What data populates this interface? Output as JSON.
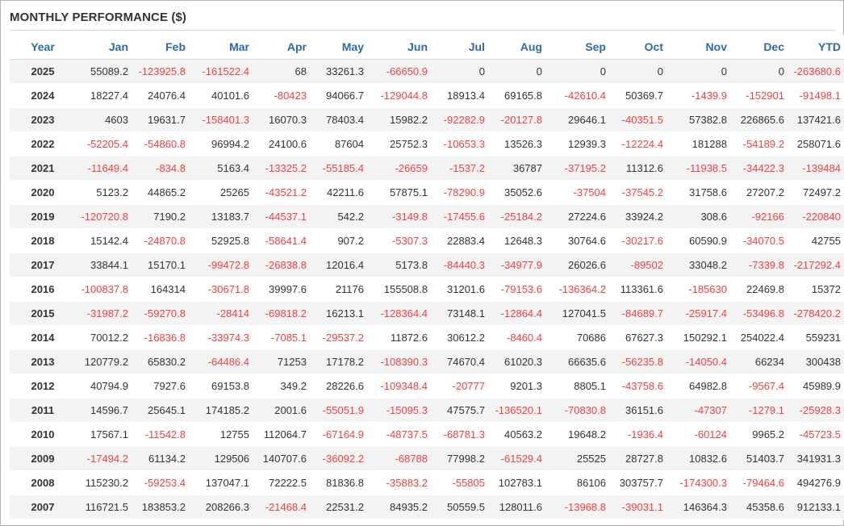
{
  "title": "MONTHLY PERFORMANCE ($)",
  "colors": {
    "header": "#2e6aa6",
    "negative": "#f04040",
    "positive": "#333333",
    "stripe": "#f3f3f3"
  },
  "columns": [
    "Year",
    "Jan",
    "Feb",
    "Mar",
    "Apr",
    "May",
    "Jun",
    "Jul",
    "Aug",
    "Sep",
    "Oct",
    "Nov",
    "Dec",
    "YTD"
  ],
  "rows": [
    [
      "2025",
      "55089.2",
      "-123925.8",
      "-161522.4",
      "68",
      "33261.3",
      "-66650.9",
      "0",
      "0",
      "0",
      "0",
      "0",
      "0",
      "-263680.6"
    ],
    [
      "2024",
      "18227.4",
      "24076.4",
      "40101.6",
      "-80423",
      "94066.7",
      "-129044.8",
      "18913.4",
      "69165.8",
      "-42610.4",
      "50369.7",
      "-1439.9",
      "-152901",
      "-91498.1"
    ],
    [
      "2023",
      "4603",
      "19631.7",
      "-158401.3",
      "16070.3",
      "78403.4",
      "15982.2",
      "-92282.9",
      "-20127.8",
      "29646.1",
      "-40351.5",
      "57382.8",
      "226865.6",
      "137421.6"
    ],
    [
      "2022",
      "-52205.4",
      "-54860.8",
      "96994.2",
      "24100.6",
      "87604",
      "25752.3",
      "-10653.3",
      "13526.3",
      "12939.3",
      "-12224.4",
      "181288",
      "-54189.2",
      "258071.6"
    ],
    [
      "2021",
      "-11649.4",
      "-834.8",
      "5163.4",
      "-13325.2",
      "-55185.4",
      "-26659",
      "-1537.2",
      "36787",
      "-37195.2",
      "11312.6",
      "-11938.5",
      "-34422.3",
      "-139484"
    ],
    [
      "2020",
      "5123.2",
      "44865.2",
      "25265",
      "-43521.2",
      "42211.6",
      "57875.1",
      "-78290.9",
      "35052.6",
      "-37504",
      "-37545.2",
      "31758.6",
      "27207.2",
      "72497.2"
    ],
    [
      "2019",
      "-120720.8",
      "7190.2",
      "13183.7",
      "-44537.1",
      "542.2",
      "-3149.8",
      "-17455.6",
      "-25184.2",
      "27224.6",
      "33924.2",
      "308.6",
      "-92166",
      "-220840"
    ],
    [
      "2018",
      "15142.4",
      "-24870.8",
      "52925.8",
      "-58641.4",
      "907.2",
      "-5307.3",
      "22883.4",
      "12648.3",
      "30764.6",
      "-30217.6",
      "60590.9",
      "-34070.5",
      "42755"
    ],
    [
      "2017",
      "33844.1",
      "15170.1",
      "-99472.8",
      "-26838.8",
      "12016.4",
      "5173.8",
      "-84440.3",
      "-34977.9",
      "26026.6",
      "-89502",
      "33048.2",
      "-7339.8",
      "-217292.4"
    ],
    [
      "2016",
      "-100837.8",
      "164314",
      "-30671.8",
      "39997.6",
      "21176",
      "155508.8",
      "31201.6",
      "-79153.6",
      "-136364.2",
      "113361.6",
      "-185630",
      "22469.8",
      "15372"
    ],
    [
      "2015",
      "-31987.2",
      "-59270.8",
      "-28414",
      "-69818.2",
      "16213.1",
      "-128364.4",
      "73148.1",
      "-12864.4",
      "127041.5",
      "-84689.7",
      "-25917.4",
      "-53496.8",
      "-278420.2"
    ],
    [
      "2014",
      "70012.2",
      "-16836.8",
      "-33974.3",
      "-7085.1",
      "-29537.2",
      "11872.6",
      "30612.2",
      "-8460.4",
      "70686",
      "67627.3",
      "150292.1",
      "254022.4",
      "559231"
    ],
    [
      "2013",
      "120779.2",
      "65830.2",
      "-64486.4",
      "71253",
      "17178.2",
      "-108390.3",
      "74670.4",
      "61020.3",
      "66635.6",
      "-56235.8",
      "-14050.4",
      "66234",
      "300438"
    ],
    [
      "2012",
      "40794.9",
      "7927.6",
      "69153.8",
      "349.2",
      "28226.6",
      "-109348.4",
      "-20777",
      "9201.3",
      "8805.1",
      "-43758.6",
      "64982.8",
      "-9567.4",
      "45989.9"
    ],
    [
      "2011",
      "14596.7",
      "25645.1",
      "174185.2",
      "2001.6",
      "-55051.9",
      "-15095.3",
      "47575.7",
      "-136520.1",
      "-70830.8",
      "36151.6",
      "-47307",
      "-1279.1",
      "-25928.3"
    ],
    [
      "2010",
      "17567.1",
      "-11542.8",
      "12755",
      "112064.7",
      "-67164.9",
      "-48737.5",
      "-68781.3",
      "40563.2",
      "19648.2",
      "-1936.4",
      "-60124",
      "9965.2",
      "-45723.5"
    ],
    [
      "2009",
      "-17494.2",
      "61134.2",
      "129506",
      "140707.6",
      "-36092.2",
      "-68788",
      "77998.2",
      "-61529.4",
      "25525",
      "28727.8",
      "10832.6",
      "51403.7",
      "341931.3"
    ],
    [
      "2008",
      "115230.2",
      "-59253.4",
      "137047.1",
      "72222.5",
      "81836.8",
      "-35883.2",
      "-55805",
      "102783.1",
      "86106",
      "303757.7",
      "-174300.3",
      "-79464.6",
      "494276.9"
    ],
    [
      "2007",
      "116721.5",
      "183853.2",
      "208266.3",
      "-21468.4",
      "22531.2",
      "84935.2",
      "50559.5",
      "128011.6",
      "-13968.8",
      "-39031.1",
      "146364.3",
      "45358.6",
      "912133.1"
    ]
  ]
}
